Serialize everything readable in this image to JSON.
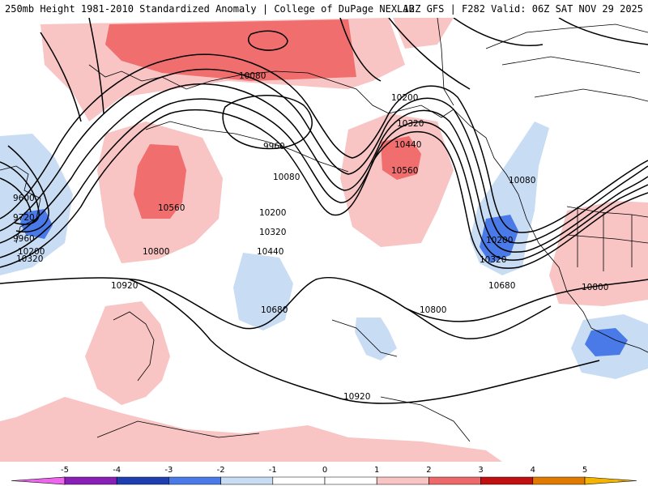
{
  "header": {
    "left_title": "250mb Height 1981-2010 Standardized Anomaly | College of DuPage NEXLAB",
    "right_title": "12Z GFS | F282 Valid: 06Z SAT NOV 29 2025"
  },
  "contour_labels": [
    "10080",
    "10200",
    "9960",
    "10320",
    "10080",
    "10440",
    "10560",
    "10560",
    "9600",
    "10080",
    "9720",
    "10200",
    "9960",
    "10200",
    "10320",
    "10200",
    "10320",
    "10320",
    "10800",
    "10440",
    "10920",
    "10680",
    "10800",
    "10680",
    "10800",
    "10920"
  ],
  "colorbar": {
    "ticks": [
      "-5",
      "-4",
      "-3",
      "-2",
      "-1",
      "0",
      "1",
      "2",
      "3",
      "4",
      "5"
    ],
    "colors": [
      "#ee66ee",
      "#8a1fb8",
      "#1f3fb0",
      "#4a7ae8",
      "#c8dcf4",
      "#ffffff",
      "#ffffff",
      "#f8c4c4",
      "#ee6a6a",
      "#c01010",
      "#e07a00",
      "#f4b400"
    ]
  },
  "colors": {
    "pos_light": "#f8c4c4",
    "pos_mid": "#f06e6e",
    "neg_light": "#c8dcf4",
    "neg_mid": "#4a7ae8",
    "contour": "#000000"
  }
}
